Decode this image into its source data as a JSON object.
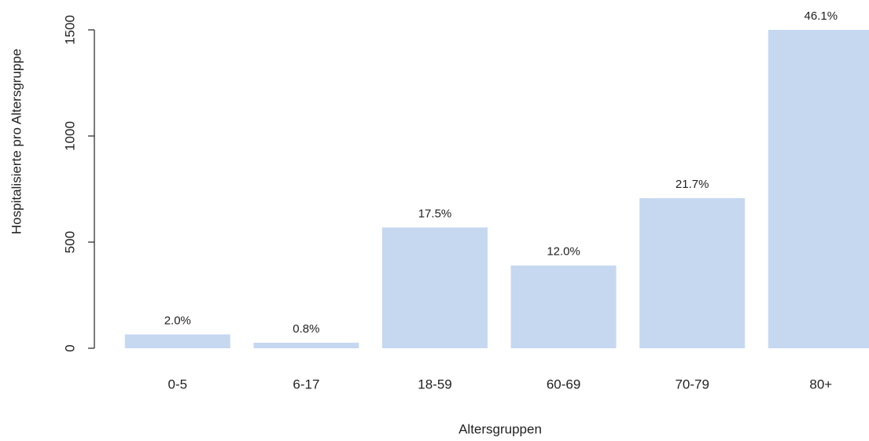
{
  "chart_data": {
    "type": "bar",
    "x_label": "Altersgruppen",
    "y_label": "Hospitalisierte pro Altersgruppe",
    "categories": [
      "0-5",
      "6-17",
      "18-59",
      "60-69",
      "70-79",
      "80+"
    ],
    "values": [
      65,
      26,
      569,
      390,
      707,
      1500
    ],
    "annotations": [
      "2.0%",
      "0.8%",
      "17.5%",
      "12.0%",
      "21.7%",
      "46.1%"
    ],
    "color": "#c6d8f0",
    "ylim": [
      0,
      1500
    ],
    "yticks": [
      0,
      500,
      1000,
      1500
    ]
  }
}
